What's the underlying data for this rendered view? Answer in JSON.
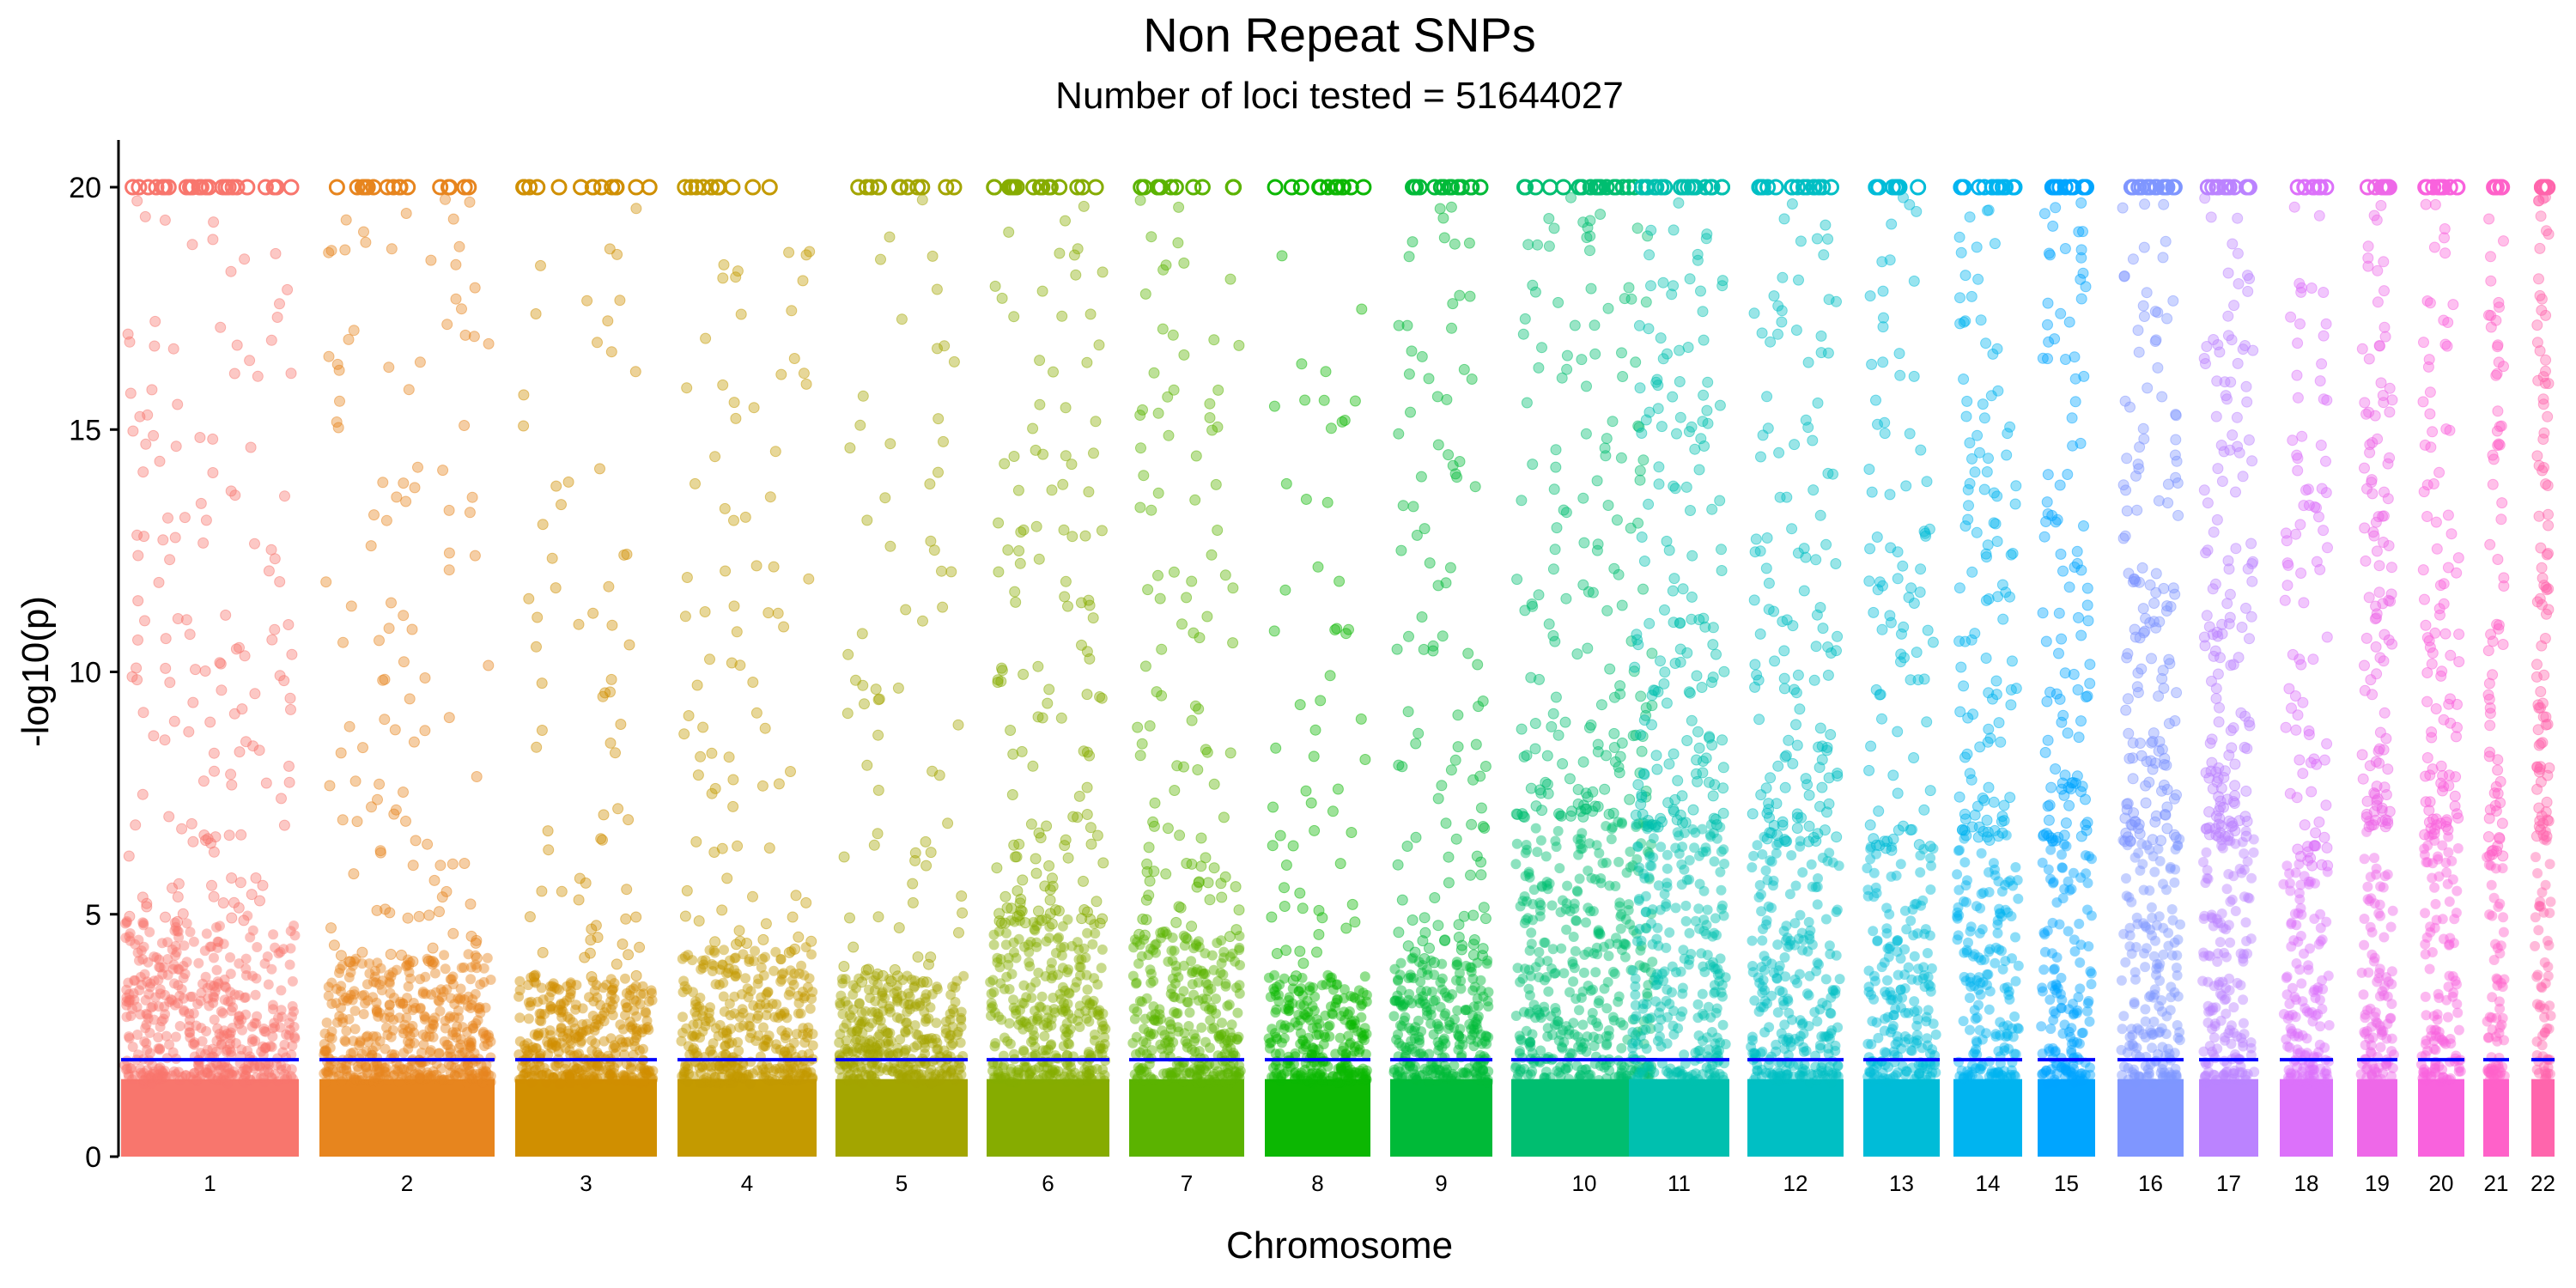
{
  "chart_data": {
    "type": "scatter",
    "title": "Non Repeat SNPs",
    "subtitle": "Number of loci tested = 51644027",
    "xlabel": "Chromosome",
    "ylabel": "-log10(p)",
    "ylim": [
      0,
      20
    ],
    "yticks": [
      0,
      5,
      10,
      15,
      20
    ],
    "threshold": {
      "value": 2,
      "color": "#0000ff"
    },
    "grid": false,
    "legend": "none",
    "point_alpha": 0.4,
    "capped_value": 20,
    "categories": [
      "1",
      "2",
      "3",
      "4",
      "5",
      "6",
      "7",
      "8",
      "9",
      "10",
      "11",
      "12",
      "13",
      "14",
      "15",
      "16",
      "17",
      "18",
      "19",
      "20",
      "21",
      "22"
    ],
    "series": [
      {
        "chromosome": "1",
        "color": "#F8766D",
        "dense_max": 4.8,
        "sparse_points": 150,
        "capped_points": 24
      },
      {
        "chromosome": "2",
        "color": "#E7851E",
        "dense_max": 4.0,
        "sparse_points": 120,
        "capped_points": 18
      },
      {
        "chromosome": "3",
        "color": "#D08F00",
        "dense_max": 3.6,
        "sparse_points": 70,
        "capped_points": 14
      },
      {
        "chromosome": "4",
        "color": "#C49A00",
        "dense_max": 4.2,
        "sparse_points": 85,
        "capped_points": 12
      },
      {
        "chromosome": "5",
        "color": "#A3A500",
        "dense_max": 3.6,
        "sparse_points": 75,
        "capped_points": 12
      },
      {
        "chromosome": "6",
        "color": "#86AC00",
        "dense_max": 4.8,
        "sparse_points": 140,
        "capped_points": 16
      },
      {
        "chromosome": "7",
        "color": "#5BB300",
        "dense_max": 4.5,
        "sparse_points": 110,
        "capped_points": 12
      },
      {
        "chromosome": "8",
        "color": "#0CB702",
        "dense_max": 3.6,
        "sparse_points": 60,
        "capped_points": 12
      },
      {
        "chromosome": "9",
        "color": "#00BA38",
        "dense_max": 4.0,
        "sparse_points": 110,
        "capped_points": 14
      },
      {
        "chromosome": "10",
        "color": "#00BE70",
        "dense_max": 7.0,
        "sparse_points": 170,
        "capped_points": 18
      },
      {
        "chromosome": "11",
        "color": "#00C0AF",
        "dense_max": 6.8,
        "sparse_points": 160,
        "capped_points": 20
      },
      {
        "chromosome": "12",
        "color": "#00BFC4",
        "dense_max": 6.5,
        "sparse_points": 140,
        "capped_points": 16
      },
      {
        "chromosome": "13",
        "color": "#00BCD8",
        "dense_max": 6.3,
        "sparse_points": 90,
        "capped_points": 10
      },
      {
        "chromosome": "14",
        "color": "#00B4F0",
        "dense_max": 6.5,
        "sparse_points": 120,
        "capped_points": 12
      },
      {
        "chromosome": "15",
        "color": "#00A5FF",
        "dense_max": 6.5,
        "sparse_points": 110,
        "capped_points": 10
      },
      {
        "chromosome": "16",
        "color": "#7F96FF",
        "dense_max": 6.5,
        "sparse_points": 150,
        "capped_points": 14
      },
      {
        "chromosome": "17",
        "color": "#BB83FF",
        "dense_max": 6.6,
        "sparse_points": 150,
        "capped_points": 12
      },
      {
        "chromosome": "18",
        "color": "#DC71FA",
        "dense_max": 6.0,
        "sparse_points": 90,
        "capped_points": 10
      },
      {
        "chromosome": "19",
        "color": "#EE68E8",
        "dense_max": 6.8,
        "sparse_points": 110,
        "capped_points": 10
      },
      {
        "chromosome": "20",
        "color": "#F962DD",
        "dense_max": 6.6,
        "sparse_points": 100,
        "capped_points": 10
      },
      {
        "chromosome": "21",
        "color": "#FF61C9",
        "dense_max": 6.2,
        "sparse_points": 70,
        "capped_points": 6
      },
      {
        "chromosome": "22",
        "color": "#FF65AC",
        "dense_max": 6.6,
        "sparse_points": 90,
        "capped_points": 6
      }
    ]
  }
}
